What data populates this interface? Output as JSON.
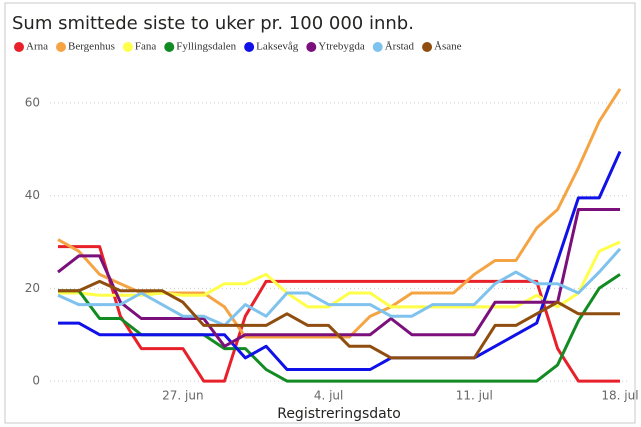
{
  "chart_data": {
    "type": "line",
    "title": "Sum smittede siste to uker pr. 100 000 innb.",
    "x_label": "Registreringsdato",
    "categories": [
      null,
      null,
      null,
      null,
      null,
      null,
      "27. jun",
      null,
      null,
      null,
      null,
      null,
      null,
      "4. jul",
      null,
      null,
      null,
      null,
      null,
      null,
      "11. jul",
      null,
      null,
      null,
      null,
      null,
      null,
      "18. jul"
    ],
    "series": [
      {
        "name": "Arna",
        "color": "#e8202a",
        "values": [
          29,
          29,
          29,
          14,
          7,
          7,
          7,
          0,
          0,
          14,
          21.5,
          21.5,
          21.5,
          21.5,
          21.5,
          21.5,
          21.5,
          21.5,
          21.5,
          21.5,
          21.5,
          21.5,
          21.5,
          21.5,
          7,
          0,
          0,
          0
        ]
      },
      {
        "name": "Bergenhus",
        "color": "#f5a444",
        "values": [
          30.5,
          28,
          23,
          21,
          19,
          19,
          19,
          19,
          16,
          9.5,
          9.5,
          9.5,
          9.5,
          9.5,
          9.5,
          14,
          16,
          19,
          19,
          19,
          23,
          26,
          26,
          33,
          37,
          46,
          56,
          63
        ]
      },
      {
        "name": "Fana",
        "color": "#ffff4a",
        "values": [
          19,
          19,
          18.5,
          18.5,
          18.5,
          19,
          18.5,
          18.5,
          21,
          21,
          23,
          19,
          16,
          16,
          19,
          19,
          16,
          16,
          16,
          16,
          16,
          16,
          16,
          18.5,
          16,
          19,
          28,
          30
        ]
      },
      {
        "name": "Fyllingsdalen",
        "color": "#118b22",
        "values": [
          19.5,
          19.5,
          13.5,
          13.5,
          10,
          10,
          10,
          10,
          7,
          7,
          2.5,
          0,
          0,
          0,
          0,
          0,
          0,
          0,
          0,
          0,
          0,
          0,
          0,
          0,
          3.5,
          13,
          20,
          23
        ]
      },
      {
        "name": "Laksevåg",
        "color": "#1010e8",
        "values": [
          12.5,
          12.5,
          10,
          10,
          10,
          10,
          10,
          10,
          10,
          5,
          7.5,
          2.5,
          2.5,
          2.5,
          2.5,
          2.5,
          5,
          5,
          5,
          5,
          5,
          7.5,
          10,
          12.5,
          26,
          39.5,
          39.5,
          49.5
        ]
      },
      {
        "name": "Ytrebygda",
        "color": "#7b0f7b",
        "values": [
          23.5,
          27,
          27,
          17,
          13.5,
          13.5,
          13.5,
          13.5,
          7.5,
          10,
          10,
          10,
          10,
          10,
          10,
          10,
          13.5,
          10,
          10,
          10,
          10,
          17,
          17,
          17,
          17,
          37,
          37,
          37
        ]
      },
      {
        "name": "Årstad",
        "color": "#7fc2ee",
        "values": [
          18.5,
          16.5,
          16.5,
          16.5,
          19,
          16.5,
          14,
          14,
          12,
          16.5,
          14,
          19,
          19,
          16.5,
          16.5,
          16.5,
          14,
          14,
          16.5,
          16.5,
          16.5,
          21,
          23.5,
          21,
          21,
          19,
          23.5,
          28.5
        ]
      },
      {
        "name": "Åsane",
        "color": "#8f4e0f",
        "values": [
          19.5,
          19.5,
          21.5,
          19.5,
          19.5,
          19.5,
          17,
          12,
          12,
          12,
          12,
          14.5,
          12,
          12,
          7.5,
          7.5,
          5,
          5,
          5,
          5,
          5,
          12,
          12,
          14.5,
          17,
          14.5,
          14.5,
          14.5
        ]
      }
    ],
    "ylim": [
      -3,
      66
    ],
    "yticks": [
      0,
      20,
      40,
      60
    ],
    "grid": true
  }
}
